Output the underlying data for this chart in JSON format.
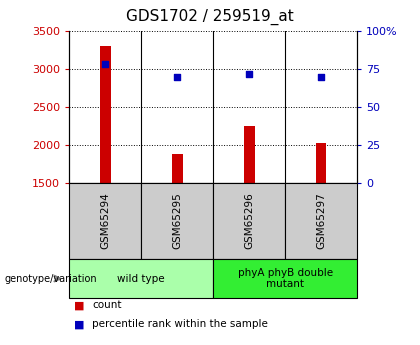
{
  "title": "GDS1702 / 259519_at",
  "samples": [
    "GSM65294",
    "GSM65295",
    "GSM65296",
    "GSM65297"
  ],
  "counts": [
    3300,
    1875,
    2250,
    2025
  ],
  "percentiles": [
    78,
    70,
    72,
    70
  ],
  "ylim_left": [
    1500,
    3500
  ],
  "ylim_right": [
    0,
    100
  ],
  "yticks_left": [
    1500,
    2000,
    2500,
    3000,
    3500
  ],
  "yticks_right": [
    0,
    25,
    50,
    75,
    100
  ],
  "bar_color": "#cc0000",
  "dot_color": "#0000bb",
  "group_info": [
    {
      "indices": [
        0,
        1
      ],
      "label": "wild type",
      "color": "#aaffaa"
    },
    {
      "indices": [
        2,
        3
      ],
      "label": "phyA phyB double\nmutant",
      "color": "#33ee33"
    }
  ],
  "sample_box_color": "#cccccc",
  "title_fontsize": 11,
  "legend_count_label": "count",
  "legend_pct_label": "percentile rank within the sample",
  "genotype_label": "genotype/variation",
  "bar_width": 0.15
}
